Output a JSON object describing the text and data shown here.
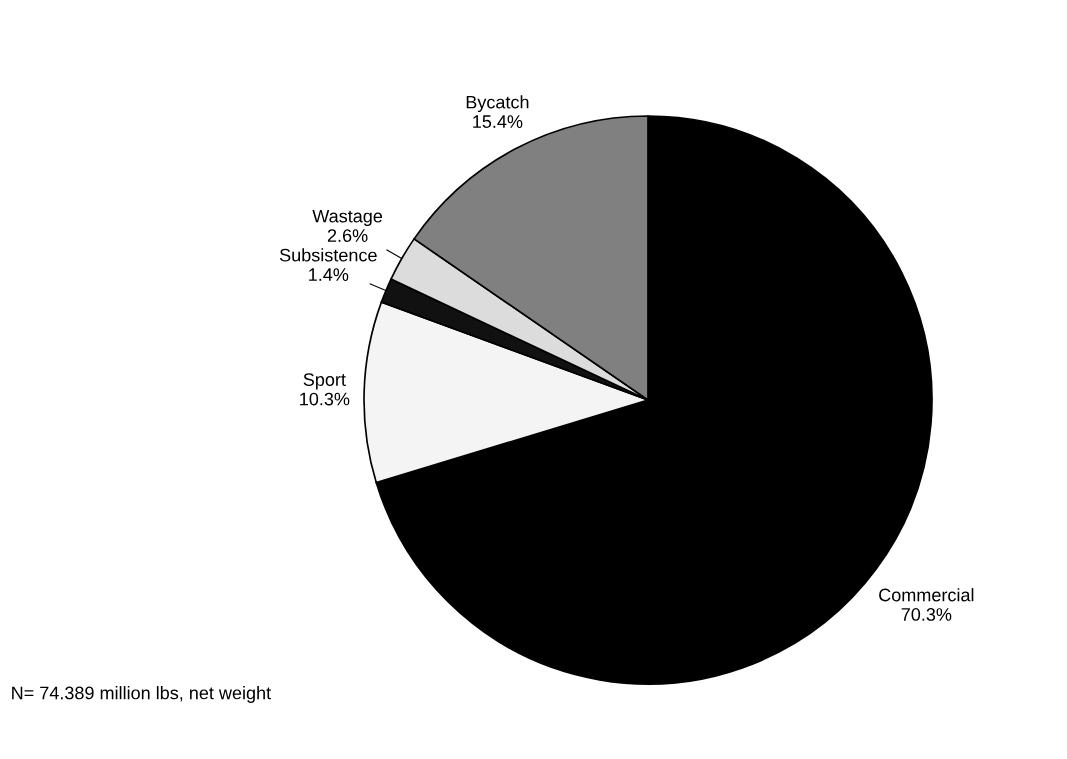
{
  "chart_data": {
    "type": "pie",
    "categories": [
      "Commercial",
      "Sport",
      "Subsistence",
      "Wastage",
      "Bycatch"
    ],
    "values": [
      70.3,
      10.3,
      1.4,
      2.6,
      15.4
    ],
    "value_labels": [
      "70.3%",
      "10.3%",
      "1.4%",
      "2.6%",
      "15.4%"
    ],
    "colors": [
      "#000000",
      "#f4f4f4",
      "#111111",
      "#dcdcdc",
      "#808080"
    ],
    "annotations": [
      "N= 74.389 million lbs, net weight"
    ]
  }
}
